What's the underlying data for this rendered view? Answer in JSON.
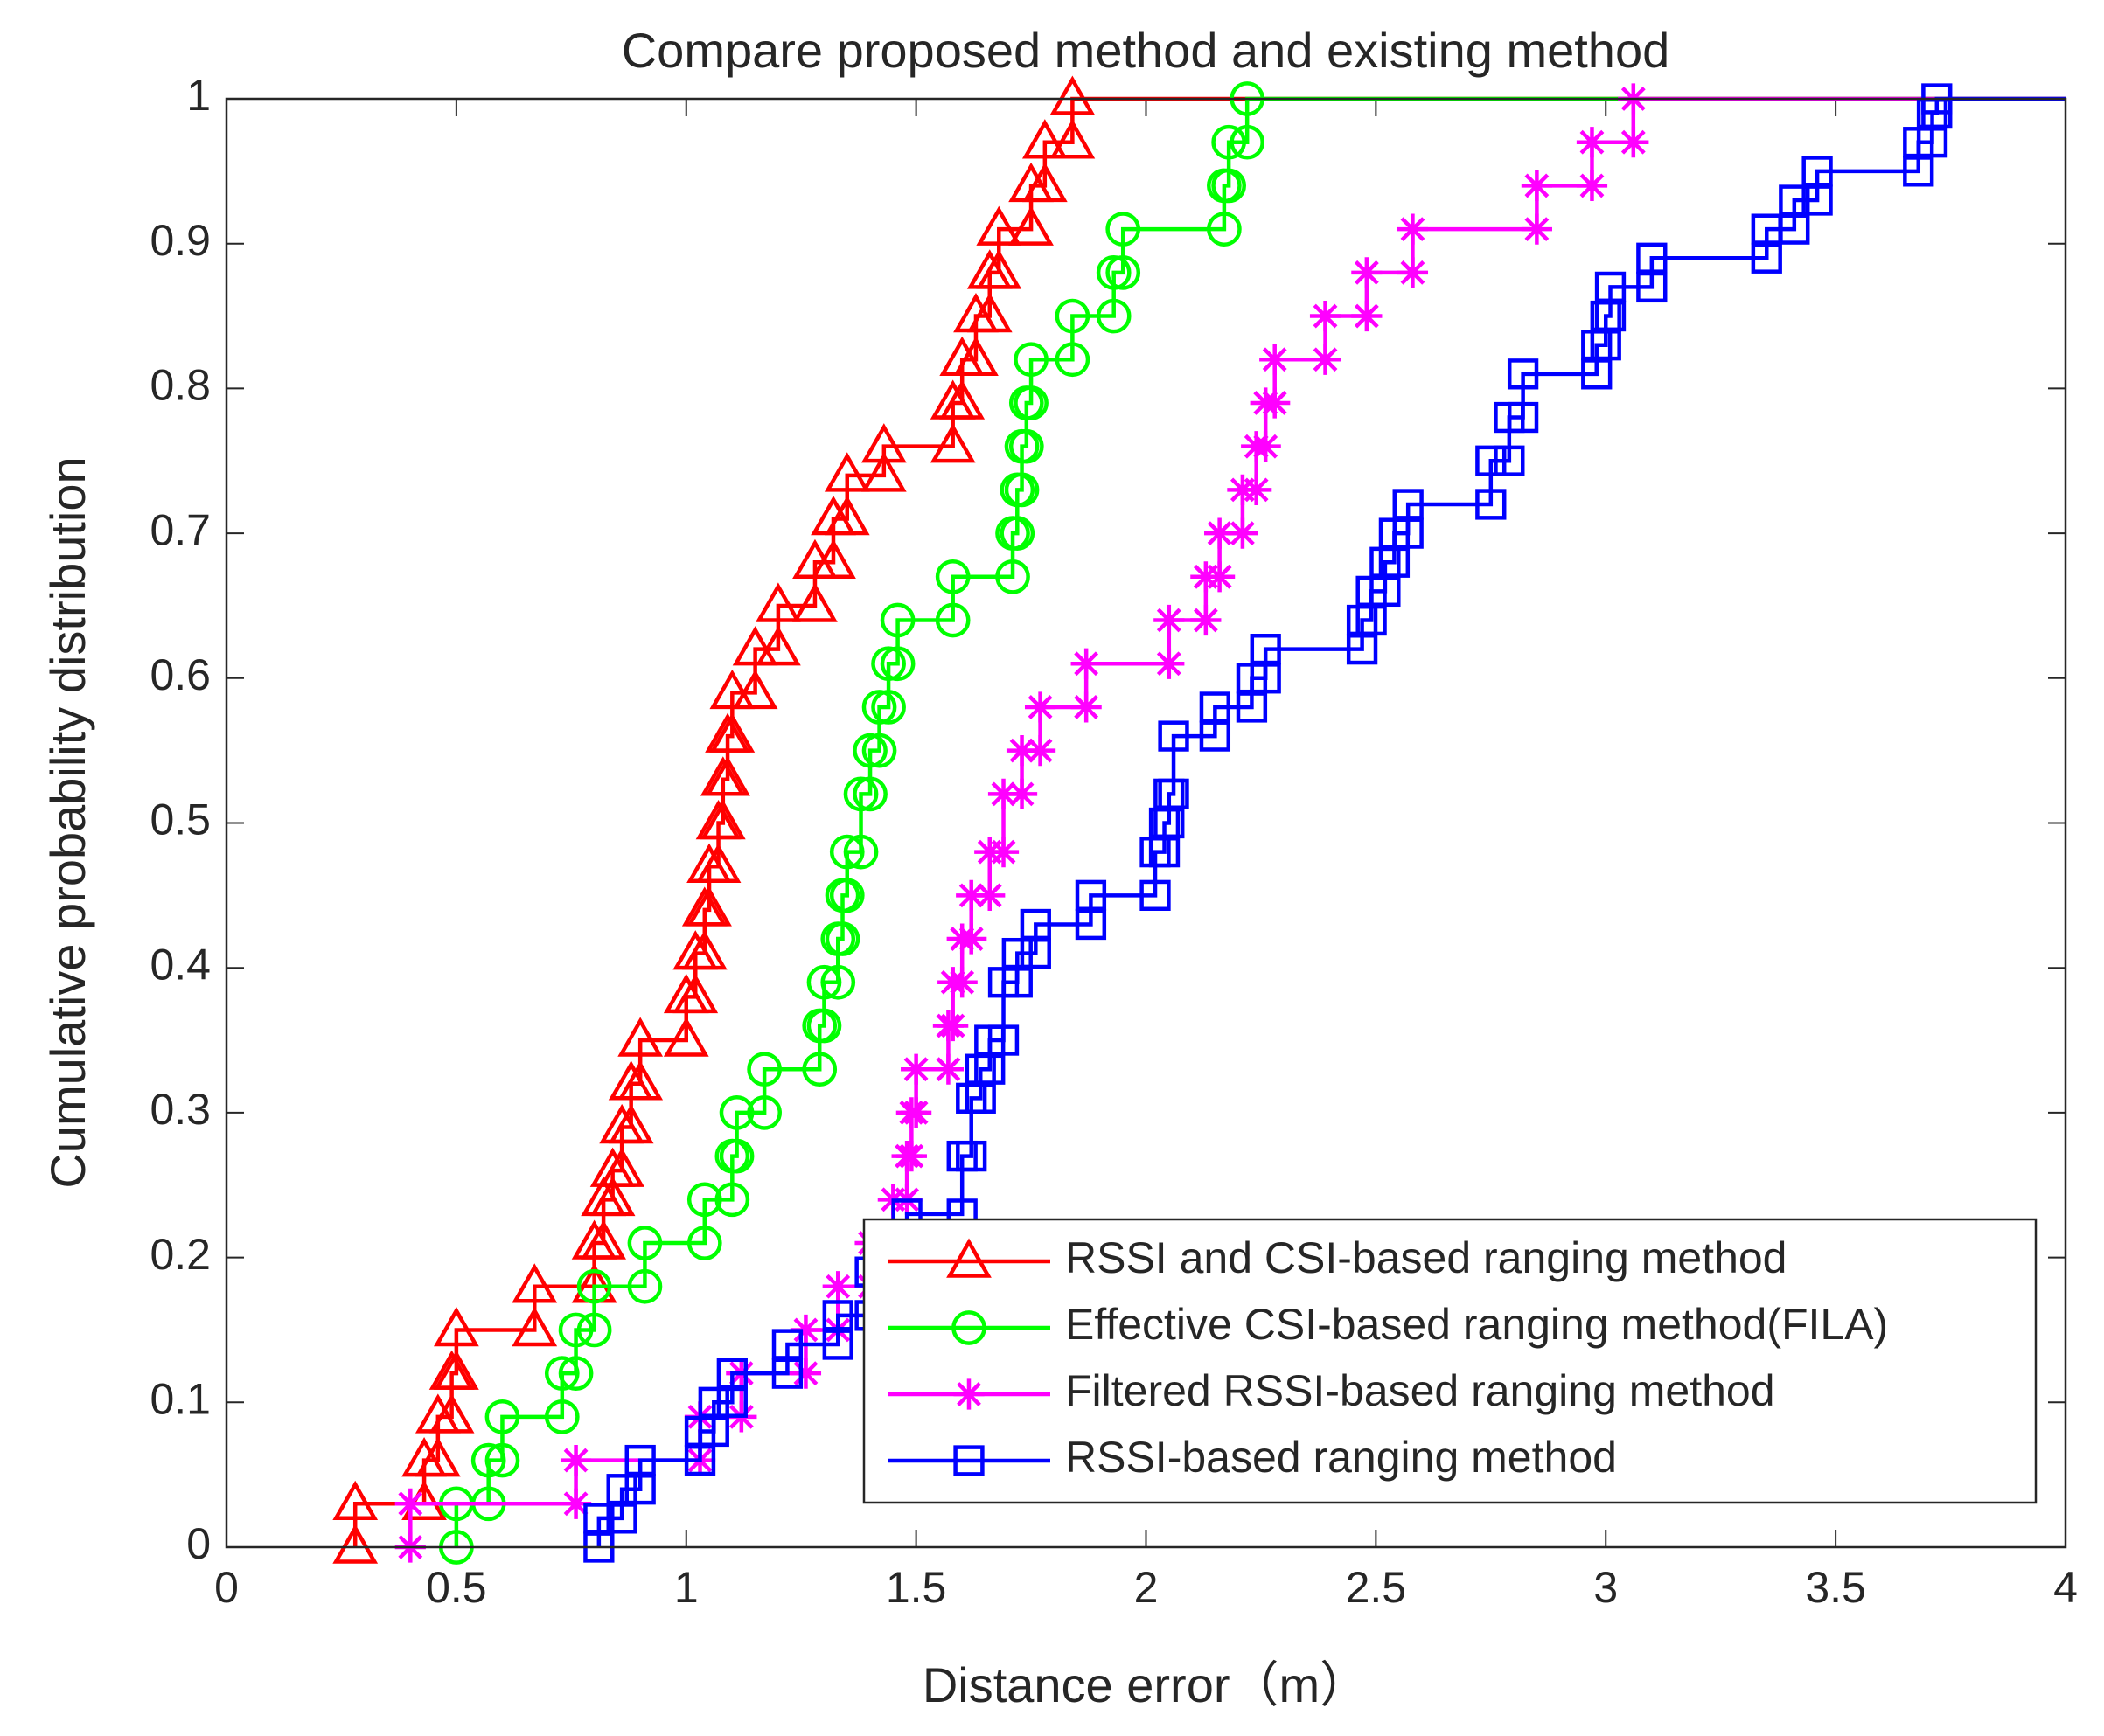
{
  "chart_data": {
    "type": "stairs",
    "title": "Compare proposed method and existing method",
    "xlabel": "Distance error（m）",
    "ylabel": "Cumulative probability distribution",
    "xlim": [
      0,
      4
    ],
    "ylim": [
      0,
      1
    ],
    "xticks": [
      0,
      0.5,
      1,
      1.5,
      2,
      2.5,
      3,
      3.5,
      4
    ],
    "yticks": [
      0,
      0.1,
      0.2,
      0.3,
      0.4,
      0.5,
      0.6,
      0.7,
      0.8,
      0.9,
      1
    ],
    "legend": "southeast",
    "series": [
      {
        "name": "RSSI and CSI-based ranging method",
        "color": "#ff0000",
        "marker": "triangle",
        "x": [
          0.28,
          0.43,
          0.46,
          0.49,
          0.5,
          0.67,
          0.8,
          0.82,
          0.84,
          0.86,
          0.88,
          0.9,
          1.0,
          1.02,
          1.04,
          1.05,
          1.07,
          1.08,
          1.09,
          1.1,
          1.15,
          1.2,
          1.28,
          1.32,
          1.35,
          1.43,
          1.58,
          1.6,
          1.63,
          1.66,
          1.68,
          1.75,
          1.78,
          1.84
        ],
        "values": [
          0.03,
          0.06,
          0.09,
          0.12,
          0.15,
          0.18,
          0.21,
          0.24,
          0.26,
          0.29,
          0.32,
          0.35,
          0.38,
          0.41,
          0.44,
          0.47,
          0.5,
          0.53,
          0.56,
          0.59,
          0.62,
          0.65,
          0.68,
          0.71,
          0.74,
          0.76,
          0.79,
          0.82,
          0.85,
          0.88,
          0.91,
          0.94,
          0.97,
          1
        ]
      },
      {
        "name": "Effective CSI-based ranging method(FILA)",
        "color": "#00ff00",
        "marker": "circle",
        "x": [
          0.5,
          0.57,
          0.6,
          0.73,
          0.76,
          0.8,
          0.91,
          1.04,
          1.1,
          1.11,
          1.17,
          1.29,
          1.3,
          1.33,
          1.34,
          1.35,
          1.38,
          1.4,
          1.42,
          1.44,
          1.46,
          1.58,
          1.71,
          1.72,
          1.73,
          1.74,
          1.75,
          1.84,
          1.93,
          1.95,
          2.17,
          2.18,
          2.22
        ],
        "values": [
          0.03,
          0.06,
          0.09,
          0.12,
          0.15,
          0.18,
          0.21,
          0.24,
          0.27,
          0.3,
          0.33,
          0.36,
          0.39,
          0.42,
          0.45,
          0.48,
          0.52,
          0.55,
          0.58,
          0.61,
          0.64,
          0.67,
          0.7,
          0.73,
          0.76,
          0.79,
          0.82,
          0.85,
          0.88,
          0.91,
          0.94,
          0.97,
          1
        ]
      },
      {
        "name": "Filtered RSSI-based ranging method",
        "color": "#ff00ff",
        "marker": "star",
        "x": [
          0.4,
          0.76,
          1.03,
          1.12,
          1.26,
          1.33,
          1.4,
          1.45,
          1.48,
          1.49,
          1.5,
          1.57,
          1.58,
          1.6,
          1.62,
          1.66,
          1.69,
          1.73,
          1.77,
          1.87,
          2.05,
          2.13,
          2.16,
          2.21,
          2.24,
          2.26,
          2.28,
          2.39,
          2.48,
          2.58,
          2.85,
          2.97,
          3.06
        ],
        "values": [
          0.03,
          0.06,
          0.09,
          0.12,
          0.15,
          0.18,
          0.21,
          0.24,
          0.27,
          0.3,
          0.33,
          0.36,
          0.39,
          0.42,
          0.45,
          0.48,
          0.52,
          0.55,
          0.58,
          0.61,
          0.64,
          0.67,
          0.7,
          0.73,
          0.76,
          0.79,
          0.82,
          0.85,
          0.88,
          0.91,
          0.94,
          0.97,
          1
        ]
      },
      {
        "name": "RSSI-based ranging method",
        "color": "#0000ff",
        "marker": "square",
        "x": [
          0.81,
          0.86,
          0.9,
          1.03,
          1.06,
          1.1,
          1.22,
          1.33,
          1.4,
          1.48,
          1.6,
          1.62,
          1.64,
          1.66,
          1.69,
          1.72,
          1.76,
          1.88,
          2.02,
          2.04,
          2.05,
          2.06,
          2.15,
          2.23,
          2.26,
          2.47,
          2.49,
          2.52,
          2.54,
          2.57,
          2.75,
          2.79,
          2.82,
          2.98,
          3.0,
          3.01,
          3.1,
          3.35,
          3.41,
          3.46,
          3.68,
          3.71,
          3.72
        ],
        "values": [
          0.02,
          0.04,
          0.06,
          0.08,
          0.1,
          0.12,
          0.14,
          0.16,
          0.19,
          0.23,
          0.27,
          0.31,
          0.33,
          0.35,
          0.39,
          0.41,
          0.43,
          0.45,
          0.48,
          0.5,
          0.52,
          0.56,
          0.58,
          0.6,
          0.62,
          0.64,
          0.66,
          0.68,
          0.7,
          0.72,
          0.75,
          0.78,
          0.81,
          0.83,
          0.85,
          0.87,
          0.89,
          0.91,
          0.93,
          0.95,
          0.97,
          0.99,
          1
        ]
      }
    ]
  }
}
